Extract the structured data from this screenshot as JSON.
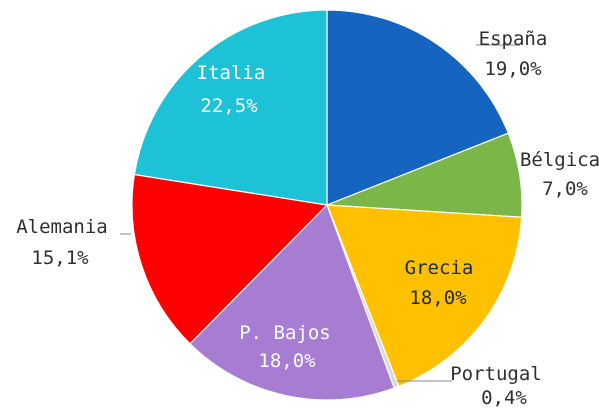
{
  "chart_data": {
    "type": "pie",
    "title": "",
    "slices": [
      {
        "label": "España",
        "value_text": "19,0%",
        "value": 19.0,
        "color": "#1565C0"
      },
      {
        "label": "Bélgica",
        "value_text": "7,0%",
        "value": 7.0,
        "color": "#7AB648"
      },
      {
        "label": "Grecia",
        "value_text": "18,0%",
        "value": 18.0,
        "color": "#FFC000"
      },
      {
        "label": "Portugal",
        "value_text": "0,4%",
        "value": 0.4,
        "color": "#D9D9D9"
      },
      {
        "label": "P. Bajos",
        "value_text": "18,0%",
        "value": 18.0,
        "color": "#A77CD3"
      },
      {
        "label": "Alemania",
        "value_text": "15,1%",
        "value": 15.1,
        "color": "#FF0000"
      },
      {
        "label": "Italia",
        "value_text": "22,5%",
        "value": 22.5,
        "color": "#1EC2D6"
      }
    ]
  }
}
